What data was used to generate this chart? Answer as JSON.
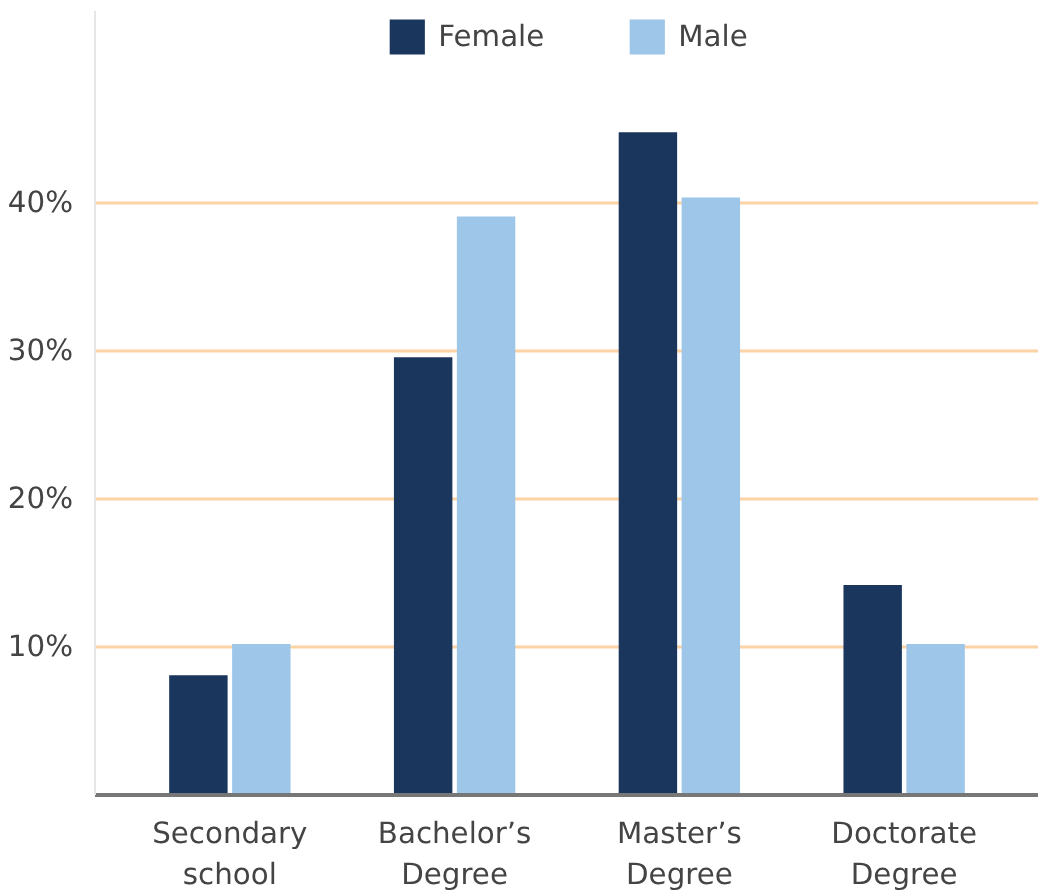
{
  "chart_data": {
    "type": "bar",
    "categories": [
      "Secondary\nschool",
      "Bachelor’s\nDegree",
      "Master’s\nDegree",
      "Doctorate\nDegree"
    ],
    "series": [
      {
        "name": "Female",
        "color": "#1b365d",
        "values": [
          8.1,
          29.6,
          44.8,
          14.2
        ]
      },
      {
        "name": "Male",
        "color": "#9dc6e8",
        "values": [
          10.2,
          39.1,
          40.4,
          10.2
        ]
      }
    ],
    "ylim": [
      0,
      53
    ],
    "yticks": [
      {
        "value": 10,
        "label": "10%"
      },
      {
        "value": 20,
        "label": "20%"
      },
      {
        "value": 30,
        "label": "30%"
      },
      {
        "value": 40,
        "label": "40%"
      }
    ],
    "grid": "y",
    "legend": "top"
  }
}
